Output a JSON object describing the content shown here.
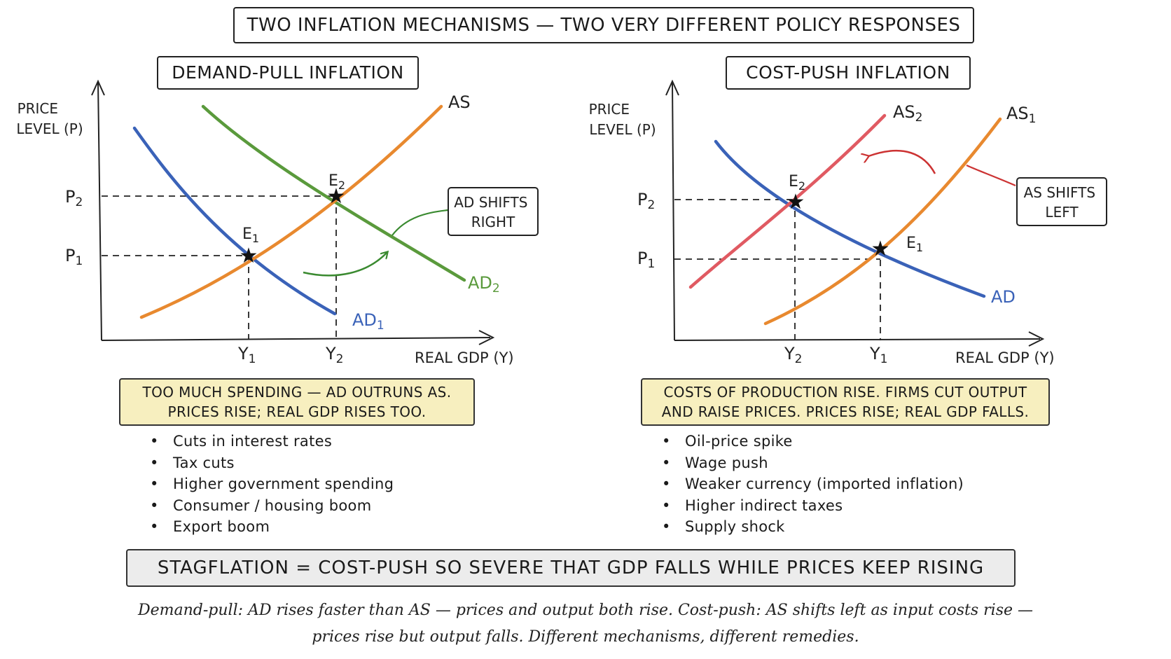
{
  "title": "TWO INFLATION MECHANISMS — TWO VERY DIFFERENT POLICY RESPONSES",
  "demand_pull": {
    "title": "DEMAND-PULL INFLATION",
    "y_axis_label": [
      "PRICE",
      "LEVEL (P)"
    ],
    "x_axis_label": "REAL GDP (Y)",
    "curves": {
      "as": "AS",
      "ad1": "AD",
      "ad1_sub": "1",
      "ad2": "AD",
      "ad2_sub": "2"
    },
    "points": {
      "e1": "E",
      "e1_sub": "1",
      "e2": "E",
      "e2_sub": "2"
    },
    "ticks": {
      "p1": "P",
      "p1_sub": "1",
      "p2": "P",
      "p2_sub": "2",
      "y1": "Y",
      "y1_sub": "1",
      "y2": "Y",
      "y2_sub": "2"
    },
    "annotation": [
      "AD SHIFTS",
      "RIGHT"
    ],
    "note_lines": [
      "TOO MUCH SPENDING — AD OUTRUNS AS.",
      "PRICES RISE; REAL GDP RISES TOO."
    ],
    "causes": [
      "Cuts in interest rates",
      "Tax cuts",
      "Higher government spending",
      "Consumer / housing boom",
      "Export boom"
    ]
  },
  "cost_push": {
    "title": "COST-PUSH INFLATION",
    "y_axis_label": [
      "PRICE",
      "LEVEL (P)"
    ],
    "x_axis_label": "REAL GDP (Y)",
    "curves": {
      "as1": "AS",
      "as1_sub": "1",
      "as2": "AS",
      "as2_sub": "2",
      "ad": "AD"
    },
    "points": {
      "e1": "E",
      "e1_sub": "1",
      "e2": "E",
      "e2_sub": "2"
    },
    "ticks": {
      "p1": "P",
      "p1_sub": "1",
      "p2": "P",
      "p2_sub": "2",
      "y1": "Y",
      "y1_sub": "1",
      "y2": "Y",
      "y2_sub": "2"
    },
    "annotation": [
      "AS SHIFTS",
      "LEFT"
    ],
    "note_lines": [
      "COSTS OF PRODUCTION RISE. FIRMS CUT OUTPUT",
      "AND RAISE PRICES. PRICES RISE; REAL GDP FALLS."
    ],
    "causes": [
      "Oil-price spike",
      "Wage push",
      "Weaker currency (imported inflation)",
      "Higher indirect taxes",
      "Supply shock"
    ]
  },
  "stagflation": "STAGFLATION = COST-PUSH SO SEVERE THAT GDP FALLS WHILE PRICES KEEP RISING",
  "caption_lines": [
    "Demand-pull: AD rises faster than AS — prices and output both rise. Cost-push: AS shifts left as input costs rise —",
    "prices rise but output falls. Different mechanisms, different remedies."
  ],
  "colors": {
    "as": "#e8892f",
    "ad": "#3a62b8",
    "ad_shifted": "#5a9a3c",
    "as_shifted": "#e05a62",
    "dp_arrow": "#3a8a30",
    "cp_arrow": "#cc3333",
    "note_bg": "#f7efbf",
    "stag_bg": "#ececec"
  }
}
